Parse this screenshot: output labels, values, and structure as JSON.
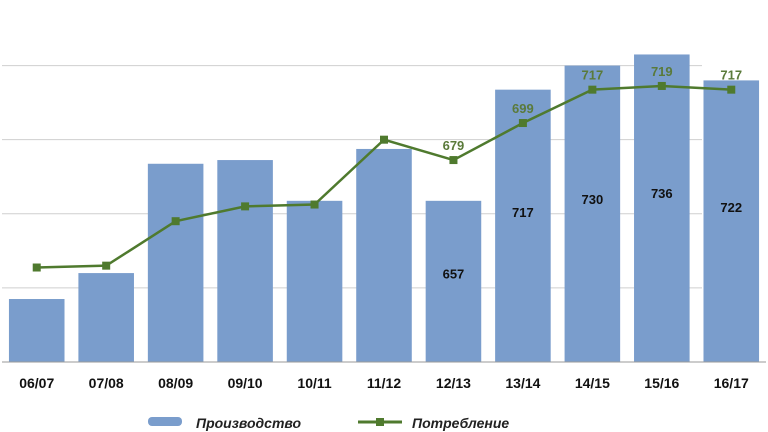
{
  "chart_data": {
    "type": "bar",
    "categories": [
      "06/07",
      "07/08",
      "08/09",
      "09/10",
      "10/11",
      "11/12",
      "12/13",
      "13/14",
      "14/15",
      "15/16",
      "16/17"
    ],
    "highlight_category": "16/17",
    "series": [
      {
        "name": "Производство",
        "type": "bar",
        "color": "#7a9dcc",
        "values": [
          604,
          618,
          677,
          679,
          657,
          685,
          657,
          717,
          730,
          736,
          722
        ],
        "data_labels": [
          null,
          null,
          null,
          null,
          null,
          null,
          "657",
          "717",
          "730",
          "736",
          "722"
        ]
      },
      {
        "name": "Потребление",
        "type": "line",
        "color": "#4f7a2e",
        "values": [
          621,
          622,
          646,
          654,
          655,
          690,
          679,
          699,
          717,
          719,
          717
        ],
        "data_labels": [
          null,
          null,
          null,
          null,
          null,
          null,
          "679",
          "699",
          "717",
          "719",
          "717"
        ]
      }
    ],
    "ylim": [
      570,
      760
    ],
    "grid": true,
    "legend": "bottom",
    "highlight_color": "#c0282d"
  }
}
